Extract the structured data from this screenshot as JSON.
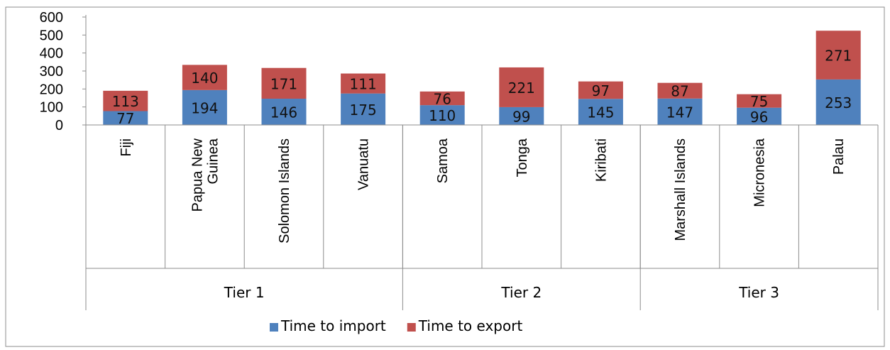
{
  "chart_data": {
    "type": "bar",
    "stacked": true,
    "ylim": [
      0,
      600
    ],
    "yticks": [
      "0",
      "100",
      "200",
      "300",
      "400",
      "500",
      "600"
    ],
    "categories": [
      "Fiji",
      "Papua New Guinea",
      "Solomon Islands",
      "Vanuatu",
      "Samoa",
      "Tonga",
      "Kiribati",
      "Marshall Islands",
      "Micronesia",
      "Palau"
    ],
    "category_lines": [
      [
        "Fiji"
      ],
      [
        "Papua New",
        "Guinea"
      ],
      [
        "Solomon Islands"
      ],
      [
        "Vanuatu"
      ],
      [
        "Samoa"
      ],
      [
        "Tonga"
      ],
      [
        "Kiribati"
      ],
      [
        "Marshall Islands"
      ],
      [
        "Micronesia"
      ],
      [
        "Palau"
      ]
    ],
    "groups": [
      {
        "label": "Tier 1",
        "categories": [
          "Fiji",
          "Papua New Guinea",
          "Solomon Islands",
          "Vanuatu"
        ]
      },
      {
        "label": "Tier 2",
        "categories": [
          "Samoa",
          "Tonga",
          "Kiribati"
        ]
      },
      {
        "label": "Tier 3",
        "categories": [
          "Marshall Islands",
          "Micronesia",
          "Palau"
        ]
      }
    ],
    "series": [
      {
        "name": "Time to import",
        "color": "#4f81bd",
        "values": [
          77,
          194,
          146,
          175,
          110,
          99,
          145,
          147,
          96,
          253
        ]
      },
      {
        "name": "Time to export",
        "color": "#c0504d",
        "values": [
          113,
          140,
          171,
          111,
          76,
          221,
          97,
          87,
          75,
          271
        ]
      }
    ],
    "legend_position": "bottom",
    "grid": false
  }
}
